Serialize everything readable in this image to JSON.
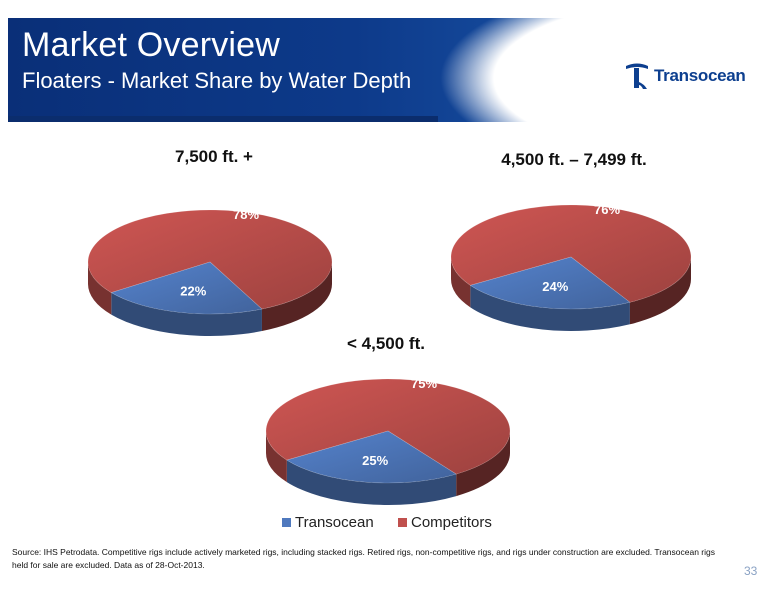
{
  "header": {
    "title": "Market Overview",
    "subtitle": "Floaters - Market Share by Water Depth",
    "logo_text": "Transocean"
  },
  "colors": {
    "transocean": "#4f79be",
    "competitors": "#c0504d",
    "header_blue": "#0d3a8a",
    "page_number": "#8aa2c4"
  },
  "chart_data": [
    {
      "type": "pie",
      "title": "7,500 ft. +",
      "slices": [
        {
          "name": "Transocean",
          "value": 22,
          "label": "22%"
        },
        {
          "name": "Competitors",
          "value": 78,
          "label": "78%"
        }
      ]
    },
    {
      "type": "pie",
      "title": "4,500 ft. – 7,499 ft.",
      "slices": [
        {
          "name": "Transocean",
          "value": 24,
          "label": "24%"
        },
        {
          "name": "Competitors",
          "value": 76,
          "label": "76%"
        }
      ]
    },
    {
      "type": "pie",
      "title": "< 4,500 ft.",
      "slices": [
        {
          "name": "Transocean",
          "value": 25,
          "label": "25%"
        },
        {
          "name": "Competitors",
          "value": 75,
          "label": "75%"
        }
      ]
    }
  ],
  "legend": [
    {
      "name": "Transocean"
    },
    {
      "name": "Competitors"
    }
  ],
  "footer": {
    "source": "Source: IHS Petrodata. Competitive rigs include actively marketed rigs, including stacked rigs.  Retired rigs, non-competitive rigs, and rigs under construction are excluded. Transocean rigs held for sale are excluded. Data as of 28-Oct-2013.",
    "page_number": "33"
  }
}
